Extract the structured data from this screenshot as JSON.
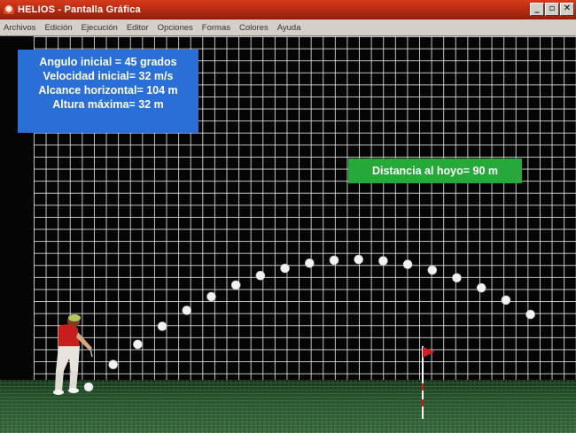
{
  "window": {
    "title": "HELIOS - Pantalla Gráfica",
    "controls": {
      "minimize": "_",
      "maximize": "▫",
      "close": "✕"
    }
  },
  "menu": {
    "items": [
      "Archivos",
      "Edición",
      "Ejecución",
      "Editor",
      "Opciones",
      "Formas",
      "Colores",
      "Ayuda"
    ]
  },
  "info": {
    "lines": [
      "Angulo inicial = 45 grados",
      "Velocidad inicial= 32 m/s",
      "Alcance horizontal= 104 m",
      "Altura máxima= 32 m"
    ],
    "color": "#2a6fd8"
  },
  "distance": {
    "label": "Distancia al hoyo= 90 m",
    "color": "#27a83a"
  },
  "scene": {
    "golfer": "golfer-figure",
    "flag": "red-flag",
    "ball": "golf-ball",
    "ball_count": 19
  }
}
